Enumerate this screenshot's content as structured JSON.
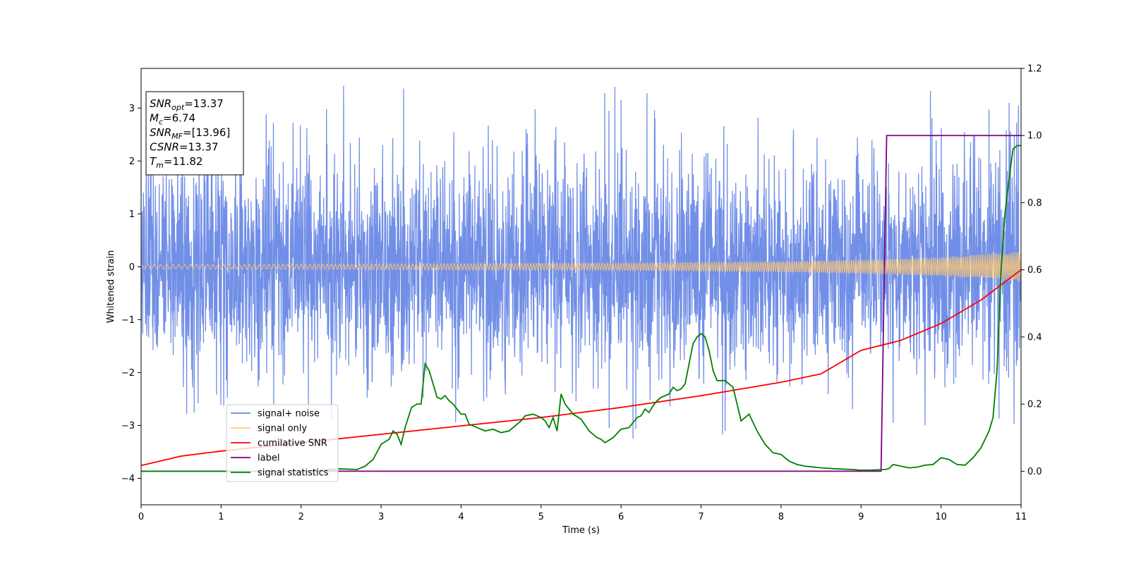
{
  "chart_data": {
    "type": "line",
    "title": "",
    "xlabel": "Time (s)",
    "ylabel": "Whitened strain",
    "xlim": [
      0,
      11
    ],
    "ylim": [
      -4.5,
      3.75
    ],
    "y2lim": [
      -0.1,
      1.2
    ],
    "x_ticks": [
      0,
      1,
      2,
      3,
      4,
      5,
      6,
      7,
      8,
      9,
      10,
      11
    ],
    "y_ticks": [
      -4,
      -3,
      -2,
      -1,
      0,
      1,
      2,
      3
    ],
    "y2_ticks": [
      0.0,
      0.2,
      0.4,
      0.6,
      0.8,
      1.0,
      1.2
    ],
    "grid": false,
    "legend_position": "lower-left",
    "annotation": [
      {
        "name": "SNR",
        "sub": "opt",
        "value": "=13.37"
      },
      {
        "name": "M",
        "sub": "c",
        "value": "=6.74"
      },
      {
        "name": "SNR",
        "sub": "MF",
        "value": "=[13.96]"
      },
      {
        "name": "CSNR",
        "sub": "",
        "value": "=13.37"
      },
      {
        "name": "T",
        "sub": "m",
        "value": "=11.82"
      }
    ],
    "series": [
      {
        "name": "signal+ noise",
        "axis": "left",
        "color": "#6a89e6",
        "envelope_time": [
          0,
          1,
          2,
          3,
          4,
          5,
          6,
          7,
          8,
          9,
          10,
          11
        ],
        "envelope_upper": [
          2.6,
          2.6,
          2.5,
          2.5,
          2.5,
          2.5,
          2.6,
          2.5,
          2.4,
          2.4,
          2.5,
          2.7
        ],
        "envelope_lower": [
          -2.6,
          -2.6,
          -2.5,
          -2.5,
          -2.5,
          -2.5,
          -2.6,
          -2.5,
          -2.4,
          -2.4,
          -2.5,
          -2.7
        ],
        "peaks": [
          {
            "x": 2.53,
            "y": 3.42
          },
          {
            "x": 3.28,
            "y": 3.37
          },
          {
            "x": 10.85,
            "y": 3.1
          },
          {
            "x": 10.6,
            "y": 2.97
          },
          {
            "x": 6.0,
            "y": 3.15
          },
          {
            "x": 2.38,
            "y": -2.9
          },
          {
            "x": 7.3,
            "y": -3.1
          },
          {
            "x": 9.4,
            "y": -2.95
          },
          {
            "x": 9.8,
            "y": -3.0
          },
          {
            "x": 6.15,
            "y": -3.25
          },
          {
            "x": 5.85,
            "y": -3.05
          }
        ]
      },
      {
        "name": "signal only",
        "axis": "left",
        "color": "#ffc870",
        "amplitude_time": [
          0,
          2,
          4,
          6,
          8,
          9,
          10,
          10.5,
          11
        ],
        "amplitude": [
          0.04,
          0.05,
          0.06,
          0.07,
          0.1,
          0.13,
          0.18,
          0.23,
          0.29
        ]
      },
      {
        "name": "cumilative SNR",
        "axis": "right",
        "color": "#ff0000",
        "x": [
          0,
          0.5,
          1,
          2,
          3,
          4,
          5,
          6,
          7,
          8,
          8.5,
          9,
          9.5,
          10,
          10.5,
          11
        ],
        "y": [
          0.017,
          0.045,
          0.06,
          0.085,
          0.11,
          0.135,
          0.16,
          0.19,
          0.225,
          0.265,
          0.29,
          0.36,
          0.39,
          0.44,
          0.51,
          0.6
        ]
      },
      {
        "name": "label",
        "axis": "right",
        "color": "#800080",
        "x": [
          0,
          9.25,
          9.32,
          11
        ],
        "y": [
          0.0,
          0.0,
          1.0,
          1.0
        ]
      },
      {
        "name": "signal statistics",
        "axis": "right",
        "color": "#008000",
        "x": [
          0,
          1,
          2,
          2.5,
          2.7,
          2.8,
          2.9,
          3.0,
          3.1,
          3.15,
          3.2,
          3.25,
          3.3,
          3.38,
          3.45,
          3.5,
          3.55,
          3.6,
          3.65,
          3.7,
          3.75,
          3.8,
          3.85,
          3.9,
          4.0,
          4.05,
          4.1,
          4.2,
          4.3,
          4.4,
          4.5,
          4.6,
          4.7,
          4.75,
          4.8,
          4.9,
          5.0,
          5.05,
          5.1,
          5.15,
          5.2,
          5.25,
          5.3,
          5.4,
          5.5,
          5.6,
          5.7,
          5.75,
          5.8,
          5.9,
          6.0,
          6.1,
          6.2,
          6.25,
          6.3,
          6.35,
          6.4,
          6.45,
          6.5,
          6.6,
          6.65,
          6.7,
          6.75,
          6.8,
          6.9,
          6.95,
          7.0,
          7.05,
          7.1,
          7.15,
          7.2,
          7.3,
          7.4,
          7.5,
          7.6,
          7.7,
          7.8,
          7.9,
          8.0,
          8.1,
          8.2,
          8.3,
          8.5,
          8.7,
          8.9,
          9.0,
          9.1,
          9.2,
          9.3,
          9.35,
          9.4,
          9.5,
          9.6,
          9.7,
          9.8,
          9.9,
          10.0,
          10.1,
          10.2,
          10.3,
          10.4,
          10.5,
          10.6,
          10.65,
          10.7,
          10.75,
          10.8,
          10.85,
          10.9,
          10.95,
          11
        ],
        "y": [
          0.0,
          0.0,
          0.0,
          0.007,
          0.005,
          0.015,
          0.035,
          0.08,
          0.095,
          0.12,
          0.11,
          0.08,
          0.13,
          0.19,
          0.2,
          0.2,
          0.32,
          0.3,
          0.26,
          0.22,
          0.215,
          0.225,
          0.21,
          0.2,
          0.17,
          0.17,
          0.14,
          0.13,
          0.12,
          0.125,
          0.115,
          0.12,
          0.14,
          0.15,
          0.165,
          0.17,
          0.16,
          0.15,
          0.13,
          0.16,
          0.12,
          0.23,
          0.2,
          0.17,
          0.155,
          0.12,
          0.1,
          0.095,
          0.085,
          0.1,
          0.125,
          0.13,
          0.16,
          0.165,
          0.185,
          0.175,
          0.195,
          0.21,
          0.22,
          0.23,
          0.25,
          0.24,
          0.245,
          0.26,
          0.38,
          0.4,
          0.41,
          0.4,
          0.36,
          0.3,
          0.27,
          0.27,
          0.25,
          0.15,
          0.17,
          0.12,
          0.08,
          0.055,
          0.05,
          0.03,
          0.02,
          0.015,
          0.01,
          0.007,
          0.005,
          0.003,
          0.003,
          0.004,
          0.005,
          0.008,
          0.02,
          0.015,
          0.01,
          0.012,
          0.018,
          0.02,
          0.04,
          0.035,
          0.02,
          0.018,
          0.04,
          0.07,
          0.12,
          0.16,
          0.3,
          0.6,
          0.77,
          0.87,
          0.96,
          0.97,
          0.97
        ]
      }
    ]
  }
}
